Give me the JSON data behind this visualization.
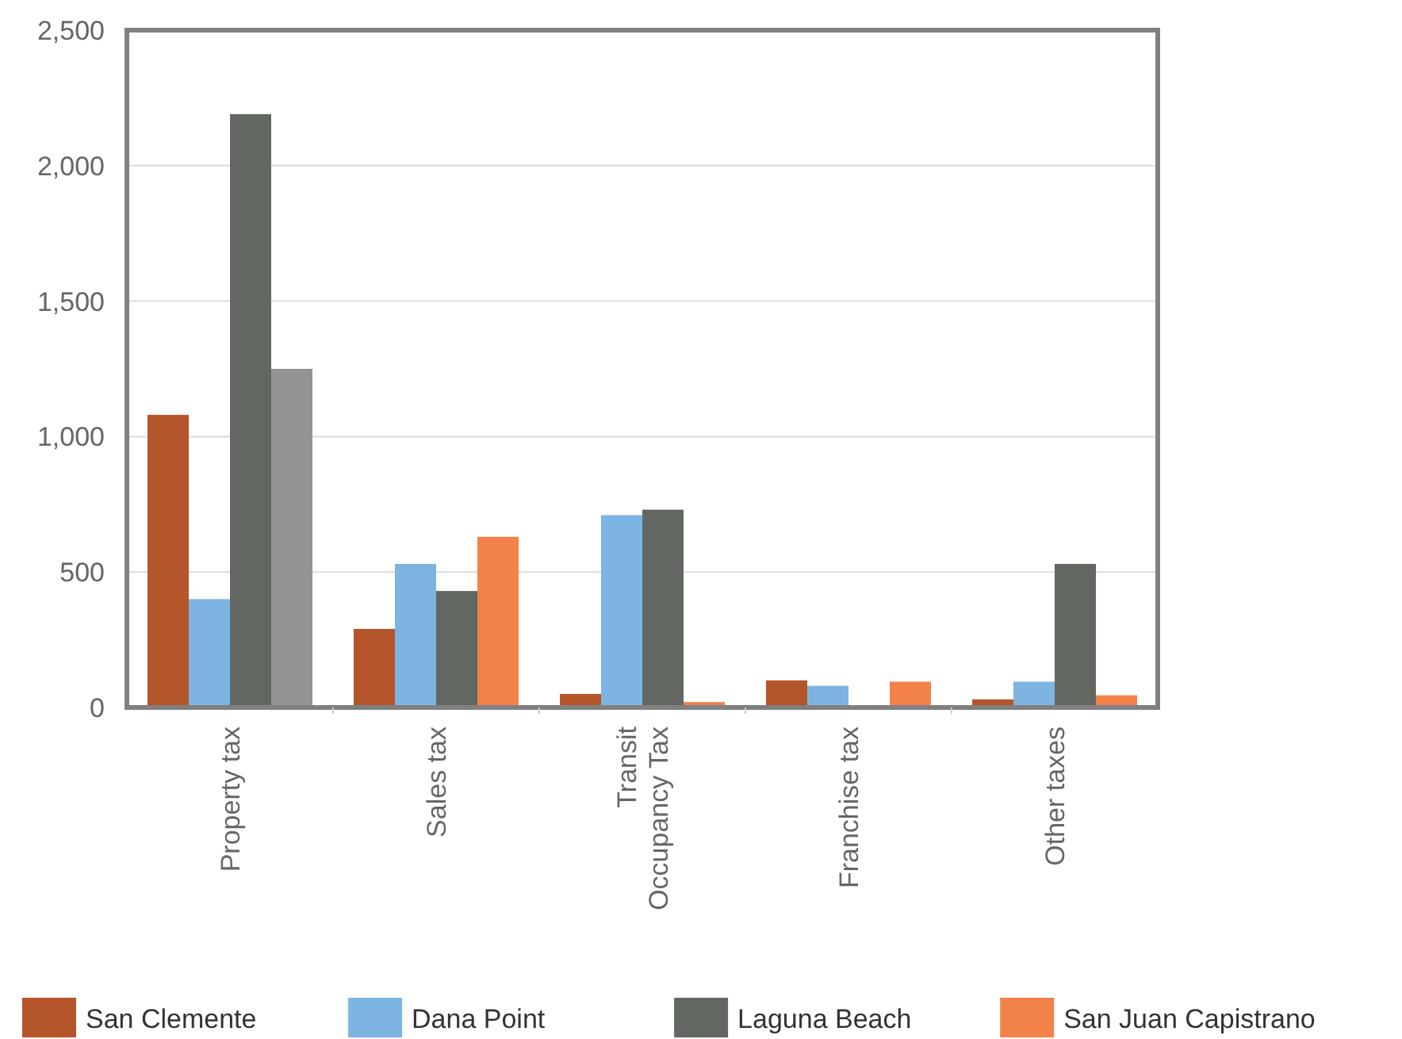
{
  "chart_data": {
    "type": "bar",
    "categories": [
      "Property tax",
      "Sales tax",
      "Transit\nOccupancy Tax",
      "Franchise tax",
      "Other taxes"
    ],
    "series": [
      {
        "name": "San Clemente",
        "color": "#b5552a",
        "values": [
          1080,
          290,
          50,
          100,
          30
        ]
      },
      {
        "name": "Dana Point",
        "color": "#7eb4e2",
        "values": [
          400,
          530,
          710,
          80,
          95
        ]
      },
      {
        "name": "Laguna Beach",
        "color": "#626861",
        "values": [
          2190,
          430,
          730,
          null,
          530
        ]
      },
      {
        "name": "San Juan Capistrano",
        "color": "#f2824a",
        "colors": [
          "#939393",
          "#f2824a",
          "#f2824a",
          "#f2824a",
          "#f2824a"
        ],
        "values": [
          1250,
          630,
          20,
          95,
          45
        ]
      }
    ],
    "ylim": [
      0,
      2500
    ],
    "yticks": [
      {
        "value": 0,
        "label": "0"
      },
      {
        "value": 500,
        "label": "500"
      },
      {
        "value": 1000,
        "label": "1,000"
      },
      {
        "value": 1500,
        "label": "1,500"
      },
      {
        "value": 2000,
        "label": "2,000"
      },
      {
        "value": 2500,
        "label": "2,500"
      }
    ],
    "grid": "y",
    "legend": "bottom"
  }
}
